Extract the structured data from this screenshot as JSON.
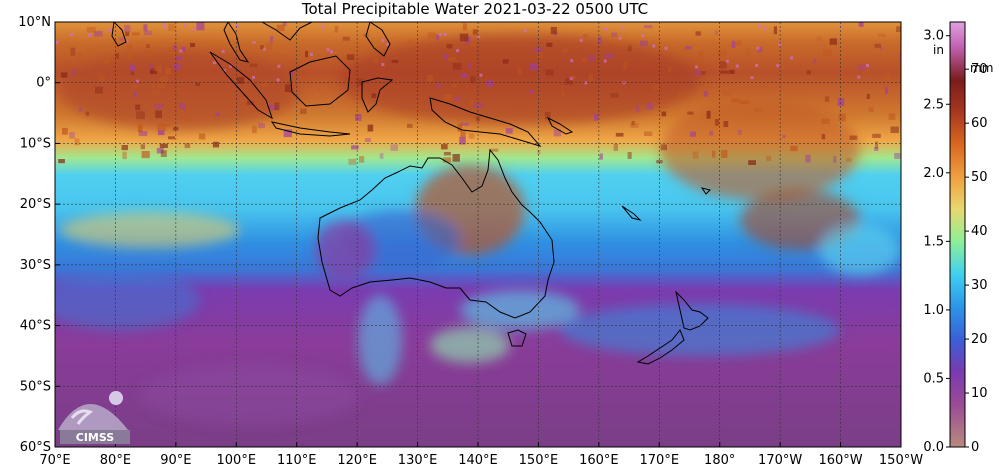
{
  "title": "Total Precipitable Water  2021-03-22 0500 UTC",
  "map": {
    "lat_range": [
      -60,
      10
    ],
    "lon_range": [
      70,
      210
    ],
    "lat_ticks": [
      {
        "value": 10,
        "label": "10°N"
      },
      {
        "value": 0,
        "label": "0°"
      },
      {
        "value": -10,
        "label": "10°S"
      },
      {
        "value": -20,
        "label": "20°S"
      },
      {
        "value": -30,
        "label": "30°S"
      },
      {
        "value": -40,
        "label": "40°S"
      },
      {
        "value": -50,
        "label": "50°S"
      },
      {
        "value": -60,
        "label": "60°S"
      }
    ],
    "lon_ticks": [
      {
        "value": 70,
        "label": "70°E"
      },
      {
        "value": 80,
        "label": "80°E"
      },
      {
        "value": 90,
        "label": "90°E"
      },
      {
        "value": 100,
        "label": "100°E"
      },
      {
        "value": 110,
        "label": "110°E"
      },
      {
        "value": 120,
        "label": "120°E"
      },
      {
        "value": 130,
        "label": "130°E"
      },
      {
        "value": 140,
        "label": "140°E"
      },
      {
        "value": 150,
        "label": "150°E"
      },
      {
        "value": 160,
        "label": "160°E"
      },
      {
        "value": 170,
        "label": "170°E"
      },
      {
        "value": 180,
        "label": "180°"
      },
      {
        "value": 190,
        "label": "170°W"
      },
      {
        "value": 200,
        "label": "160°W"
      },
      {
        "value": 210,
        "label": "150°W"
      }
    ],
    "gridlines": true,
    "colors": {
      "very_dry": "#7a2e6e",
      "dry": "#a03ea0",
      "blue": "#2c8ae0",
      "cyan": "#5fd4f0",
      "green": "#9cf08a",
      "orange": "#e89a3c",
      "dark_orange": "#c0581e",
      "brown": "#8a2a18",
      "land": "#a8b3b0"
    }
  },
  "colorbar": {
    "unit_in": "in",
    "unit_mm": "mm",
    "in_range": [
      0,
      3.1
    ],
    "mm_range": [
      0,
      78.74
    ],
    "in_ticks": [
      "0.0",
      "0.5",
      "1.0",
      "1.5",
      "2.0",
      "2.5",
      "3.0"
    ],
    "mm_ticks": [
      "0",
      "10",
      "20",
      "30",
      "40",
      "50",
      "60",
      "70"
    ],
    "stops": [
      {
        "mm": 0,
        "color": "#b98a7e"
      },
      {
        "mm": 8,
        "color": "#9a4a96"
      },
      {
        "mm": 14,
        "color": "#7a3ab0"
      },
      {
        "mm": 20,
        "color": "#3a60d8"
      },
      {
        "mm": 26,
        "color": "#2c96e8"
      },
      {
        "mm": 32,
        "color": "#40d0f0"
      },
      {
        "mm": 38,
        "color": "#8cf098"
      },
      {
        "mm": 44,
        "color": "#e8d870"
      },
      {
        "mm": 50,
        "color": "#f0a040"
      },
      {
        "mm": 56,
        "color": "#d86820"
      },
      {
        "mm": 62,
        "color": "#a83820"
      },
      {
        "mm": 68,
        "color": "#7a1c1c"
      },
      {
        "mm": 74,
        "color": "#c060b0"
      },
      {
        "mm": 78.74,
        "color": "#e0a0e0"
      }
    ]
  },
  "logo": {
    "text": "CIMSS"
  }
}
